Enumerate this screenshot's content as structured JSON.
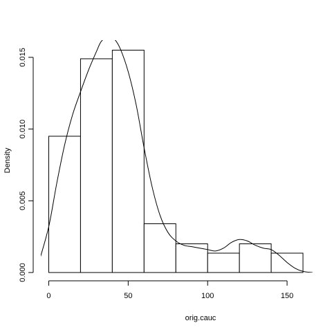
{
  "chart_data": {
    "type": "bar",
    "subtype": "histogram with density curve",
    "xlabel": "orig.cauc",
    "ylabel": "Density",
    "xlim": [
      -5,
      170
    ],
    "ylim": [
      0,
      0.0162
    ],
    "x_ticks": [
      0,
      50,
      100,
      150
    ],
    "x_tick_labels": [
      "0",
      "50",
      "100",
      "150"
    ],
    "y_ticks": [
      0,
      0.005,
      0.01,
      0.015
    ],
    "y_tick_labels": [
      "0.000",
      "0.005",
      "0.010",
      "0.015"
    ],
    "grid": false,
    "bins": [
      {
        "x0": 0,
        "x1": 20,
        "density": 0.0095
      },
      {
        "x0": 20,
        "x1": 40,
        "density": 0.0149
      },
      {
        "x0": 40,
        "x1": 60,
        "density": 0.0155
      },
      {
        "x0": 60,
        "x1": 80,
        "density": 0.0034
      },
      {
        "x0": 80,
        "x1": 100,
        "density": 0.002
      },
      {
        "x0": 100,
        "x1": 120,
        "density": 0.00135
      },
      {
        "x0": 120,
        "x1": 140,
        "density": 0.002
      },
      {
        "x0": 140,
        "x1": 160,
        "density": 0.00135
      }
    ],
    "density_curve": {
      "x": [
        -6,
        0,
        5,
        10,
        15,
        20,
        25,
        30,
        33,
        37,
        41,
        45,
        50,
        55,
        60,
        65,
        70,
        75,
        80,
        85,
        90,
        95,
        100,
        105,
        110,
        115,
        120,
        125,
        130,
        135,
        140,
        145,
        150,
        155,
        160,
        166
      ],
      "y": [
        0.0008,
        0.0032,
        0.0062,
        0.0089,
        0.011,
        0.0126,
        0.0141,
        0.0154,
        0.0161,
        0.0164,
        0.0163,
        0.0156,
        0.014,
        0.0117,
        0.0087,
        0.006,
        0.004,
        0.0028,
        0.0022,
        0.0019,
        0.0018,
        0.0017,
        0.0016,
        0.0015,
        0.0017,
        0.0021,
        0.0023,
        0.0022,
        0.0019,
        0.0017,
        0.0016,
        0.0012,
        0.0007,
        0.0003,
        8e-05,
        0.0
      ]
    }
  }
}
